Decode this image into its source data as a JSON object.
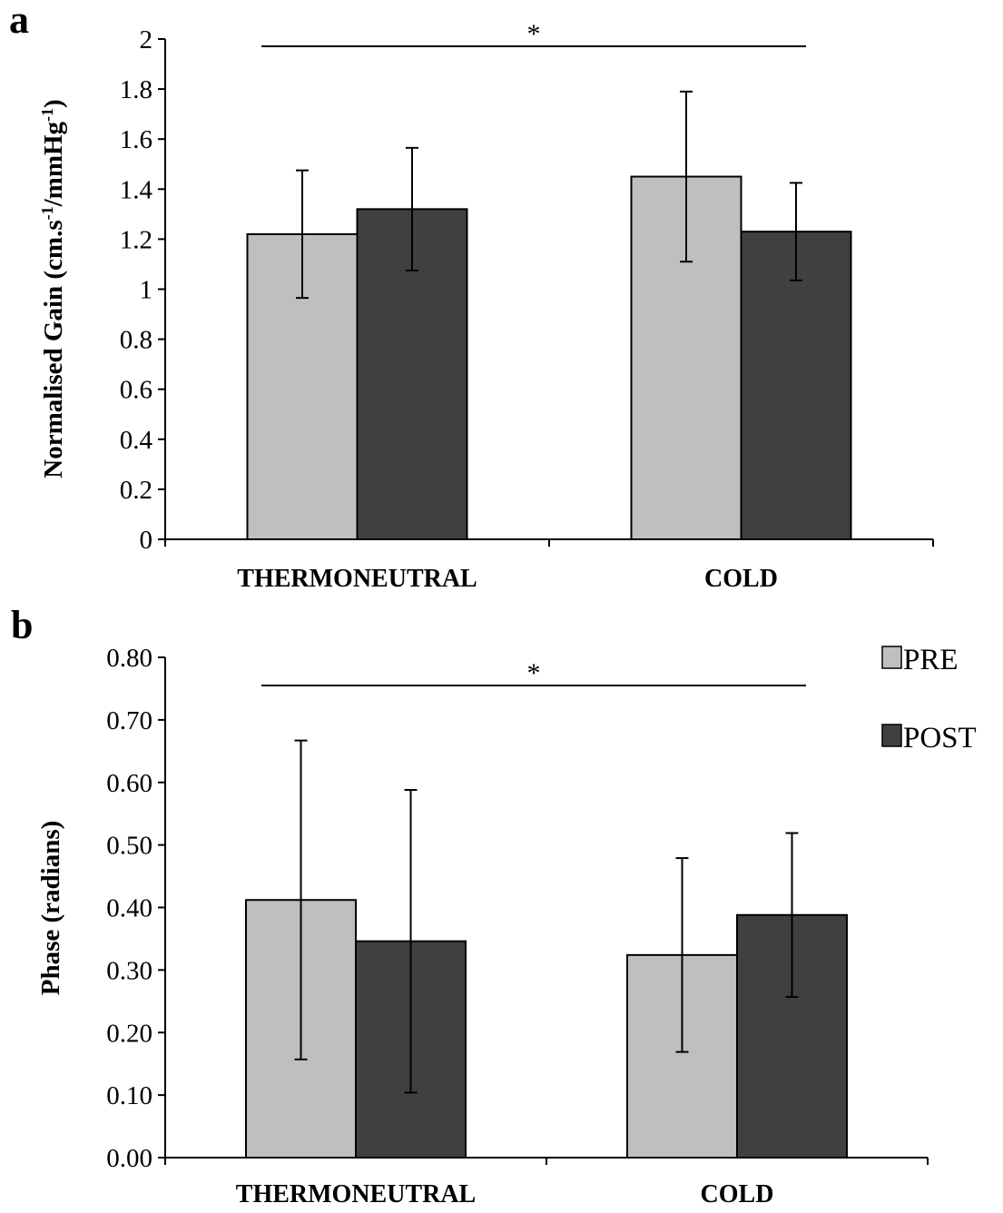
{
  "chart_data": [
    {
      "panel": "a",
      "type": "bar",
      "categories": [
        "THERMONEUTRAL",
        "COLD"
      ],
      "series": [
        {
          "name": "PRE",
          "values": [
            1.22,
            1.45
          ],
          "error": [
            0.255,
            0.34
          ],
          "color": "#bfbfbf"
        },
        {
          "name": "POST",
          "values": [
            1.32,
            1.23
          ],
          "error": [
            0.245,
            0.195
          ],
          "color": "#404040"
        }
      ],
      "ylabel_main": "Normalised Gain (cm.s",
      "ylabel_sup1": "-1",
      "ylabel_mid": "/mmHg",
      "ylabel_sup2": "-1",
      "ylabel_end": ")",
      "ylim": [
        0,
        2
      ],
      "yticks": [
        "0",
        "0.2",
        "0.4",
        "0.6",
        "0.8",
        "1",
        "1.2",
        "1.4",
        "1.6",
        "1.8",
        "2"
      ],
      "significance": "*",
      "grid": false
    },
    {
      "panel": "b",
      "type": "bar",
      "categories": [
        "THERMONEUTRAL",
        "COLD"
      ],
      "series": [
        {
          "name": "PRE",
          "values": [
            0.412,
            0.324
          ],
          "error": [
            0.255,
            0.155
          ],
          "color": "#bfbfbf"
        },
        {
          "name": "POST",
          "values": [
            0.346,
            0.388
          ],
          "error": [
            0.242,
            0.131
          ],
          "color": "#404040"
        }
      ],
      "ylabel": "Phase (radians)",
      "ylim": [
        0,
        0.8
      ],
      "yticks": [
        "0.00",
        "0.10",
        "0.20",
        "0.30",
        "0.40",
        "0.50",
        "0.60",
        "0.70",
        "0.80"
      ],
      "significance": "*",
      "legend_position": "top-right",
      "grid": false
    }
  ]
}
